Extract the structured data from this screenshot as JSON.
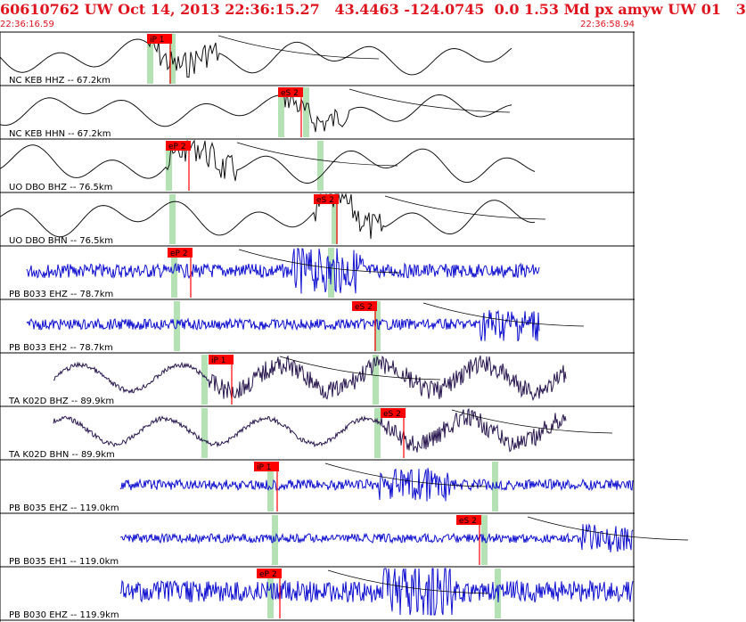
{
  "header": {
    "title": "60610762 UW Oct 14, 2013 22:36:15.27   43.4463 -124.0745  0.0 1.53 Md px amyw UW 01   3",
    "start_time": "22:36:16.59",
    "end_time": "22:36:58.94"
  },
  "colors": {
    "pick_box": "#ff0000",
    "window": "#b5e2b5",
    "text_red": "#e0141e",
    "low_gain": "#111111",
    "high_freq": "#1010d0",
    "mixed": "#2a1850"
  },
  "channels": [
    {
      "label": "NC KEB HHZ -- 67.2km",
      "pick": "iP 1",
      "trace": "low_gain"
    },
    {
      "label": "NC KEB HHN -- 67.2km",
      "pick": "eS 2",
      "trace": "low_gain"
    },
    {
      "label": "UO DBO BHZ -- 76.5km",
      "pick": "eP 2",
      "trace": "low_gain"
    },
    {
      "label": "UO DBO BHN -- 76.5km",
      "pick": "eS 2",
      "trace": "low_gain"
    },
    {
      "label": "PB B033 EHZ -- 78.7km",
      "pick": "eP 2",
      "trace": "high_freq"
    },
    {
      "label": "PB B033 EH2 -- 78.7km",
      "pick": "eS 2",
      "trace": "high_freq"
    },
    {
      "label": "TA K02D BHZ -- 89.9km",
      "pick": "iP 1",
      "trace": "mixed"
    },
    {
      "label": "TA K02D BHN -- 89.9km",
      "pick": "eS 2",
      "trace": "mixed"
    },
    {
      "label": "PB B035 EHZ -- 119.0km",
      "pick": "iP 1",
      "trace": "high_freq"
    },
    {
      "label": "PB B035 EH1 -- 119.0km",
      "pick": "eS 2",
      "trace": "high_freq"
    },
    {
      "label": "PB B030 EHZ -- 119.9km",
      "pick": "eP 2",
      "trace": "high_freq"
    }
  ]
}
